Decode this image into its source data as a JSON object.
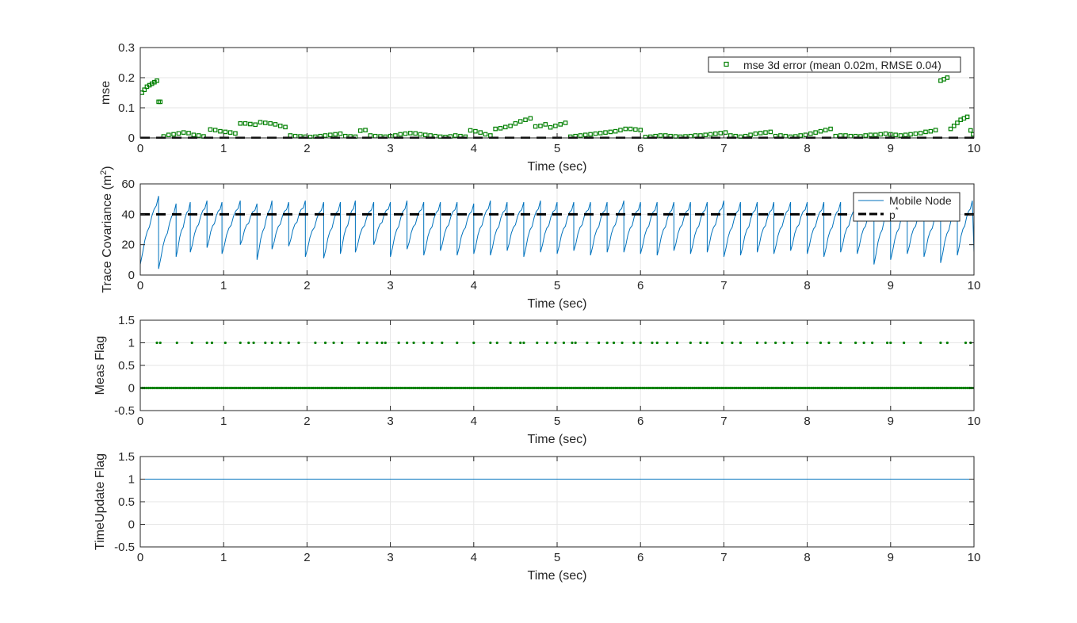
{
  "chart_data": [
    {
      "type": "scatter",
      "xlabel": "Time (sec)",
      "ylabel": "mse",
      "xlim": [
        0,
        10
      ],
      "ylim": [
        0,
        0.3
      ],
      "xticks": [
        "0",
        "1",
        "2",
        "3",
        "4",
        "5",
        "6",
        "7",
        "8",
        "9",
        "10"
      ],
      "yticks": [
        "0",
        "0.1",
        "0.2",
        "0.3"
      ],
      "grid": true,
      "legend_location": "top-right",
      "legend": [
        "mse 3d error (mean 0.02m, RMSE 0.04)"
      ],
      "series": [
        {
          "name": "mse 3d error (mean 0.02m, RMSE 0.04)",
          "marker": "square",
          "color": "#007f00",
          "x": [
            0.02,
            0.05,
            0.08,
            0.11,
            0.14,
            0.17,
            0.2,
            0.22,
            0.24,
            0.28,
            0.34,
            0.4,
            0.46,
            0.52,
            0.58,
            0.64,
            0.7,
            0.76,
            0.84,
            0.9,
            0.96,
            1.02,
            1.08,
            1.14,
            1.2,
            1.26,
            1.32,
            1.38,
            1.44,
            1.5,
            1.56,
            1.62,
            1.68,
            1.74,
            1.8,
            1.86,
            1.92,
            1.98,
            2.04,
            2.1,
            2.16,
            2.22,
            2.28,
            2.34,
            2.4,
            2.46,
            2.52,
            2.58,
            2.64,
            2.7,
            2.76,
            2.82,
            2.88,
            2.94,
            3.0,
            3.06,
            3.12,
            3.18,
            3.24,
            3.3,
            3.36,
            3.42,
            3.48,
            3.54,
            3.6,
            3.66,
            3.72,
            3.78,
            3.84,
            3.9,
            3.96,
            4.02,
            4.08,
            4.14,
            4.2,
            4.26,
            4.32,
            4.38,
            4.44,
            4.5,
            4.56,
            4.62,
            4.68,
            4.74,
            4.8,
            4.86,
            4.92,
            4.98,
            5.04,
            5.1,
            5.16,
            5.22,
            5.28,
            5.34,
            5.4,
            5.46,
            5.52,
            5.58,
            5.64,
            5.7,
            5.76,
            5.82,
            5.88,
            5.94,
            6.0,
            6.06,
            6.12,
            6.18,
            6.24,
            6.3,
            6.36,
            6.42,
            6.48,
            6.54,
            6.6,
            6.66,
            6.72,
            6.78,
            6.84,
            6.9,
            6.96,
            7.02,
            7.08,
            7.14,
            7.2,
            7.26,
            7.32,
            7.38,
            7.44,
            7.5,
            7.56,
            7.62,
            7.68,
            7.74,
            7.8,
            7.86,
            7.92,
            7.98,
            8.04,
            8.1,
            8.16,
            8.22,
            8.28,
            8.34,
            8.4,
            8.46,
            8.52,
            8.58,
            8.64,
            8.7,
            8.76,
            8.82,
            8.88,
            8.94,
            9.0,
            9.06,
            9.12,
            9.18,
            9.24,
            9.3,
            9.36,
            9.42,
            9.48,
            9.54,
            9.6,
            9.64,
            9.68,
            9.72,
            9.76,
            9.8,
            9.84,
            9.88,
            9.92,
            9.96,
            9.99
          ],
          "y": [
            0.15,
            0.16,
            0.17,
            0.175,
            0.18,
            0.185,
            0.19,
            0.12,
            0.12,
            0.005,
            0.01,
            0.012,
            0.015,
            0.018,
            0.016,
            0.01,
            0.008,
            0.005,
            0.028,
            0.026,
            0.022,
            0.02,
            0.018,
            0.015,
            0.048,
            0.048,
            0.046,
            0.044,
            0.052,
            0.05,
            0.048,
            0.045,
            0.04,
            0.036,
            0.008,
            0.006,
            0.005,
            0.004,
            0.003,
            0.004,
            0.006,
            0.008,
            0.01,
            0.012,
            0.014,
            0.006,
            0.005,
            0.004,
            0.024,
            0.026,
            0.008,
            0.006,
            0.005,
            0.004,
            0.006,
            0.008,
            0.012,
            0.014,
            0.016,
            0.015,
            0.012,
            0.01,
            0.008,
            0.006,
            0.004,
            0.003,
            0.005,
            0.008,
            0.006,
            0.004,
            0.025,
            0.022,
            0.018,
            0.012,
            0.008,
            0.03,
            0.032,
            0.036,
            0.04,
            0.048,
            0.055,
            0.06,
            0.065,
            0.038,
            0.04,
            0.045,
            0.035,
            0.04,
            0.045,
            0.05,
            0.004,
            0.006,
            0.008,
            0.01,
            0.012,
            0.014,
            0.016,
            0.018,
            0.02,
            0.022,
            0.026,
            0.03,
            0.03,
            0.028,
            0.026,
            0.003,
            0.004,
            0.006,
            0.008,
            0.008,
            0.006,
            0.005,
            0.004,
            0.005,
            0.006,
            0.008,
            0.008,
            0.01,
            0.012,
            0.014,
            0.016,
            0.018,
            0.008,
            0.006,
            0.004,
            0.006,
            0.01,
            0.014,
            0.016,
            0.018,
            0.02,
            0.006,
            0.008,
            0.006,
            0.004,
            0.005,
            0.008,
            0.01,
            0.014,
            0.018,
            0.022,
            0.026,
            0.03,
            0.006,
            0.008,
            0.008,
            0.006,
            0.006,
            0.005,
            0.008,
            0.01,
            0.01,
            0.012,
            0.014,
            0.012,
            0.01,
            0.008,
            0.01,
            0.012,
            0.014,
            0.016,
            0.02,
            0.022,
            0.026,
            0.19,
            0.195,
            0.2,
            0.03,
            0.04,
            0.05,
            0.06,
            0.065,
            0.07,
            0.025,
            0.012
          ]
        },
        {
          "name": "",
          "style": "dashed",
          "color": "#000000",
          "x": [
            0,
            10
          ],
          "y": [
            0,
            0
          ]
        }
      ]
    },
    {
      "type": "line",
      "xlabel": "Time (sec)",
      "ylabel": "Trace Covariance (m²)",
      "ylabel_main": "Trace Covariance (m",
      "ylabel_sup": "2",
      "ylabel_end": ")",
      "xlim": [
        0,
        10
      ],
      "ylim": [
        0,
        60
      ],
      "xticks": [
        "0",
        "1",
        "2",
        "3",
        "4",
        "5",
        "6",
        "7",
        "8",
        "9",
        "10"
      ],
      "yticks": [
        "0",
        "20",
        "40",
        "60"
      ],
      "grid": true,
      "legend_location": "top-right",
      "legend": [
        "Mobile Node",
        "p*"
      ],
      "legend_p": "p",
      "legend_star": "*",
      "series": [
        {
          "name": "Mobile Node",
          "color": "#0072bd",
          "sawtooth_resets": [
            0.22,
            0.43,
            0.6,
            0.8,
            0.98,
            1.2,
            1.4,
            1.58,
            1.78,
            1.98,
            2.2,
            2.4,
            2.58,
            2.8,
            3.0,
            3.2,
            3.4,
            3.6,
            3.8,
            4.0,
            4.2,
            4.4,
            4.6,
            4.8,
            5.0,
            5.2,
            5.4,
            5.6,
            5.8,
            6.0,
            6.2,
            6.4,
            6.6,
            6.8,
            7.0,
            7.2,
            7.4,
            7.6,
            7.8,
            8.0,
            8.2,
            8.4,
            8.6,
            8.8,
            9.0,
            9.2,
            9.4,
            9.6,
            9.8,
            9.98
          ],
          "range": [
            4,
            52
          ]
        },
        {
          "name": "p*",
          "style": "dashed",
          "color": "#000000",
          "x": [
            0,
            10
          ],
          "y": [
            40,
            40
          ]
        }
      ]
    },
    {
      "type": "scatter",
      "xlabel": "Time (sec)",
      "ylabel": "Meas Flag",
      "xlim": [
        0,
        10
      ],
      "ylim": [
        -0.5,
        1.5
      ],
      "xticks": [
        "0",
        "1",
        "2",
        "3",
        "4",
        "5",
        "6",
        "7",
        "8",
        "9",
        "10"
      ],
      "yticks": [
        "-0.5",
        "0",
        "0.5",
        "1",
        "1.5"
      ],
      "grid": true,
      "series": [
        {
          "name": "",
          "marker": "dot",
          "color": "#007f00",
          "ones_x": [
            0.2,
            0.24,
            0.44,
            0.62,
            0.8,
            0.86,
            1.02,
            1.2,
            1.3,
            1.36,
            1.5,
            1.58,
            1.68,
            1.78,
            1.9,
            2.1,
            2.22,
            2.32,
            2.42,
            2.62,
            2.72,
            2.84,
            2.9,
            2.94,
            3.1,
            3.2,
            3.28,
            3.4,
            3.5,
            3.62,
            3.8,
            4.0,
            4.2,
            4.28,
            4.44,
            4.56,
            4.6,
            4.76,
            4.88,
            4.98,
            5.08,
            5.18,
            5.22,
            5.36,
            5.5,
            5.6,
            5.68,
            5.78,
            5.92,
            6.0,
            6.14,
            6.2,
            6.32,
            6.44,
            6.6,
            6.72,
            6.8,
            6.98,
            7.1,
            7.2,
            7.4,
            7.5,
            7.62,
            7.72,
            7.82,
            8.0,
            8.16,
            8.26,
            8.4,
            8.58,
            8.68,
            8.78,
            8.96,
            9.0,
            9.16,
            9.36,
            9.6,
            9.68,
            9.9,
            9.96
          ]
        }
      ]
    },
    {
      "type": "line",
      "xlabel": "Time (sec)",
      "ylabel": "TimeUpdate Flag",
      "xlim": [
        0,
        10
      ],
      "ylim": [
        -0.5,
        1.5
      ],
      "xticks": [
        "0",
        "1",
        "2",
        "3",
        "4",
        "5",
        "6",
        "7",
        "8",
        "9",
        "10"
      ],
      "yticks": [
        "-0.5",
        "0",
        "0.5",
        "1",
        "1.5"
      ],
      "grid": true,
      "series": [
        {
          "name": "",
          "color": "#0072bd",
          "x": [
            0,
            10
          ],
          "y": [
            1,
            1
          ]
        }
      ]
    }
  ]
}
